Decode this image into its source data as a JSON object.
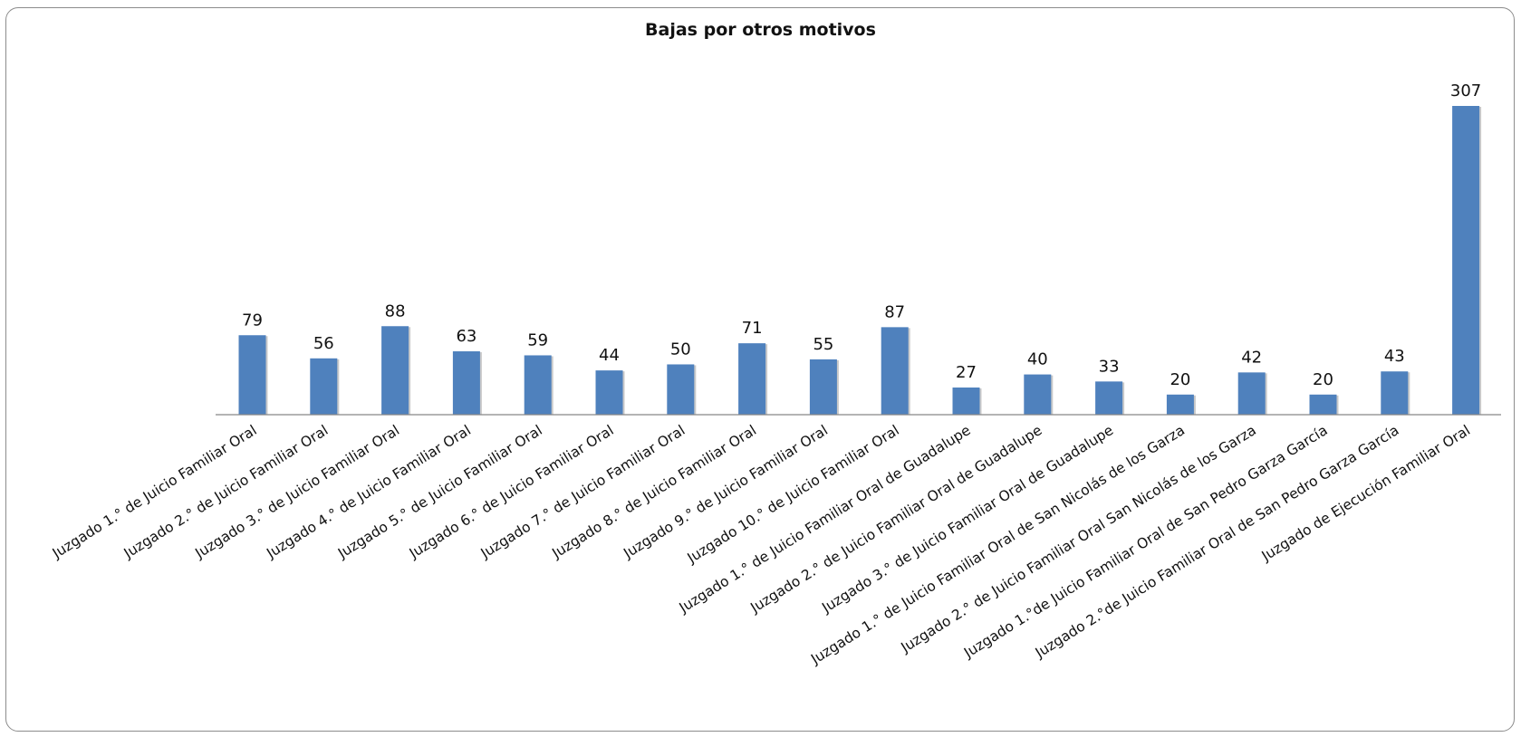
{
  "chart_data": {
    "type": "bar",
    "title": "Bajas por otros motivos",
    "bar_color": "#4f81bd",
    "categories": [
      "Juzgado 1.° de Juicio Familiar Oral",
      "Juzgado 2.° de Juicio Familiar Oral",
      "Juzgado 3.° de Juicio Familiar Oral",
      "Juzgado 4.° de Juicio Familiar Oral",
      "Juzgado 5.° de Juicio Familiar Oral",
      "Juzgado 6.° de Juicio Familiar Oral",
      "Juzgado 7.° de Juicio Familiar Oral",
      "Juzgado 8.° de Juicio Familiar Oral",
      "Juzgado 9.° de Juicio Familiar Oral",
      "Juzgado 10.° de Juicio Familiar Oral",
      "Juzgado 1.° de Juicio Familiar Oral de Guadalupe",
      "Juzgado 2.° de Juicio Familiar Oral de Guadalupe",
      "Juzgado 3.° de Juicio Familiar Oral de Guadalupe",
      "Juzgado 1.° de Juicio Familiar Oral de San Nicolás de los Garza",
      "Juzgado 2.° de Juicio Familiar Oral San Nicolás de los Garza",
      "Juzgado 1.°de Juicio Familiar Oral de San Pedro Garza García",
      "Juzgado 2.°de Juicio Familiar Oral de San Pedro Garza García",
      "Juzgado de Ejecución Familiar Oral"
    ],
    "values": [
      79,
      56,
      88,
      63,
      59,
      44,
      50,
      71,
      55,
      87,
      27,
      40,
      33,
      20,
      42,
      20,
      43,
      307
    ],
    "ylim": [
      0,
      307
    ],
    "grid": false,
    "legend": "none"
  }
}
